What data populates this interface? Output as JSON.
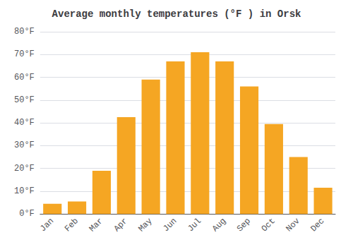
{
  "chart_data": {
    "type": "bar",
    "title": "Average monthly temperatures (°F ) in Orsk",
    "categories": [
      "Jan",
      "Feb",
      "Mar",
      "Apr",
      "May",
      "Jun",
      "Jul",
      "Aug",
      "Sep",
      "Oct",
      "Nov",
      "Dec"
    ],
    "values": [
      4.5,
      5.5,
      19,
      42.5,
      59,
      67,
      71,
      67,
      56,
      39.5,
      25,
      11.5
    ],
    "color": "#F5A623",
    "ylim": [
      0,
      80
    ],
    "yticks": [
      {
        "value": 0,
        "label": "0°F"
      },
      {
        "value": 10,
        "label": "10°F"
      },
      {
        "value": 20,
        "label": "20°F"
      },
      {
        "value": 30,
        "label": "30°F"
      },
      {
        "value": 40,
        "label": "40°F"
      },
      {
        "value": 50,
        "label": "50°F"
      },
      {
        "value": 60,
        "label": "60°F"
      },
      {
        "value": 70,
        "label": "70°F"
      },
      {
        "value": 80,
        "label": "80°F"
      }
    ],
    "grid": true
  }
}
